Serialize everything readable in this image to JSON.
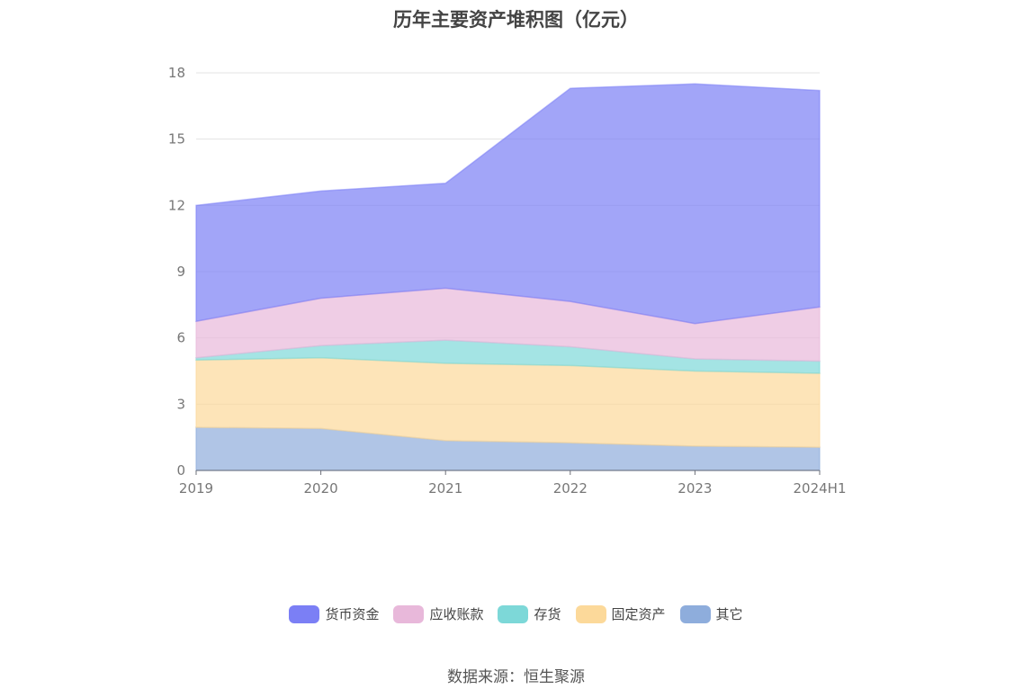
{
  "title": "历年主要资产堆积图（亿元）",
  "source": "数据来源：恒生聚源",
  "colors": {
    "货币资金": "#7b7ff5",
    "应收账款": "#e8b8da",
    "存货": "#7dd8d8",
    "固定资产": "#fcd99a",
    "其它": "#8eaddc"
  },
  "chart_data": {
    "type": "area",
    "stacked": true,
    "title": "历年主要资产堆积图（亿元）",
    "xlabel": "",
    "ylabel": "",
    "categories": [
      "2019",
      "2020",
      "2021",
      "2022",
      "2023",
      "2024H1"
    ],
    "ylim": [
      0,
      18
    ],
    "yticks": [
      "0",
      "3",
      "6",
      "9",
      "12",
      "15",
      "18"
    ],
    "grid": true,
    "legend_position": "bottom",
    "series": [
      {
        "name": "其它",
        "values": [
          1.95,
          1.9,
          1.35,
          1.25,
          1.1,
          1.05
        ]
      },
      {
        "name": "固定资产",
        "values": [
          3.05,
          3.2,
          3.5,
          3.5,
          3.4,
          3.35
        ]
      },
      {
        "name": "存货",
        "values": [
          0.1,
          0.55,
          1.05,
          0.85,
          0.55,
          0.55
        ]
      },
      {
        "name": "应收账款",
        "values": [
          1.65,
          2.15,
          2.35,
          2.05,
          1.6,
          2.45
        ]
      },
      {
        "name": "货币资金",
        "values": [
          5.25,
          4.85,
          4.75,
          9.65,
          10.85,
          9.8
        ]
      }
    ]
  },
  "legend": [
    {
      "name": "货币资金"
    },
    {
      "name": "应收账款"
    },
    {
      "name": "存货"
    },
    {
      "name": "固定资产"
    },
    {
      "name": "其它"
    }
  ]
}
